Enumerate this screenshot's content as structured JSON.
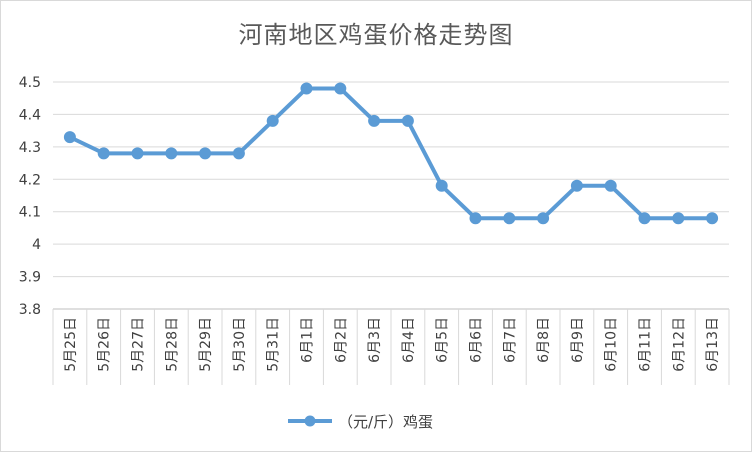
{
  "chart_data": {
    "type": "line",
    "title": "河南地区鸡蛋价格走势图",
    "categories": [
      "5月25日",
      "5月26日",
      "5月27日",
      "5月28日",
      "5月29日",
      "5月30日",
      "5月31日",
      "6月1日",
      "6月2日",
      "6月3日",
      "6月4日",
      "6月5日",
      "6月6日",
      "6月7日",
      "6月8日",
      "6月9日",
      "6月10日",
      "6月11日",
      "6月12日",
      "6月13日"
    ],
    "series": [
      {
        "name": "（元/斤）鸡蛋",
        "color": "#5b9bd5",
        "values": [
          4.33,
          4.28,
          4.28,
          4.28,
          4.28,
          4.28,
          4.38,
          4.48,
          4.48,
          4.38,
          4.38,
          4.18,
          4.08,
          4.08,
          4.08,
          4.18,
          4.18,
          4.08,
          4.08,
          4.08
        ]
      }
    ],
    "y_ticks": [
      "3.8",
      "3.9",
      "4",
      "4.1",
      "4.2",
      "4.3",
      "4.4",
      "4.5"
    ],
    "ylim": [
      3.8,
      4.5
    ],
    "grid": true,
    "legend_position": "bottom",
    "colors": {
      "gridline": "#d9d9d9",
      "axis": "#bfbfbf",
      "text": "#404040"
    }
  }
}
